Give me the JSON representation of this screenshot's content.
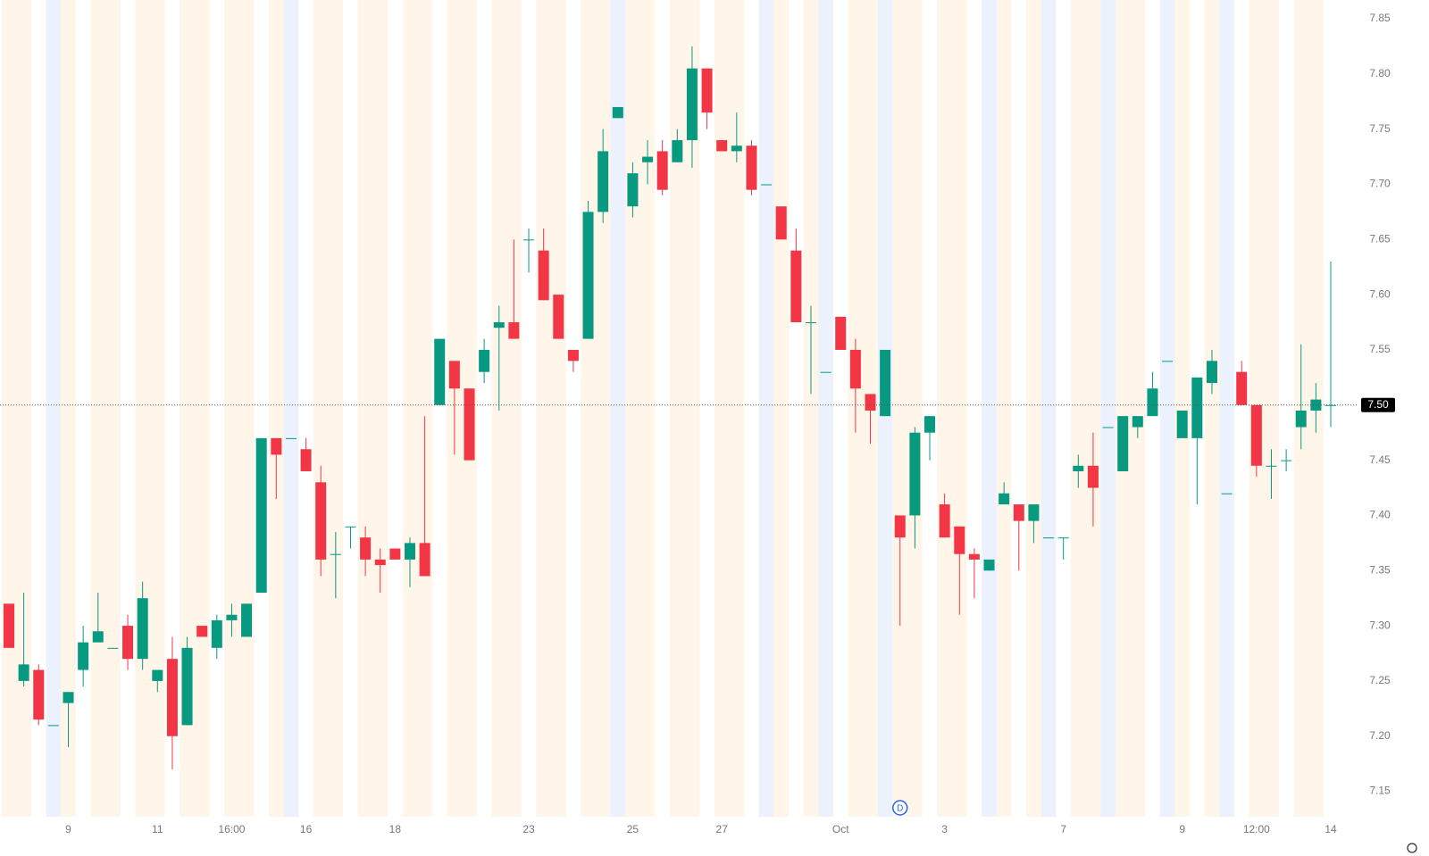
{
  "chart_data": {
    "type": "candlestick",
    "categories": [
      null,
      null,
      null,
      null,
      "9",
      null,
      null,
      null,
      null,
      null,
      "11",
      null,
      null,
      null,
      null,
      "16:00",
      null,
      null,
      null,
      null,
      "16",
      null,
      null,
      null,
      null,
      null,
      "18",
      null,
      null,
      null,
      null,
      null,
      null,
      null,
      null,
      "23",
      null,
      null,
      null,
      null,
      null,
      null,
      "25",
      null,
      null,
      null,
      null,
      null,
      "27",
      null,
      null,
      null,
      null,
      null,
      null,
      null,
      "Oct",
      null,
      null,
      null,
      null,
      null,
      null,
      "3",
      null,
      null,
      null,
      null,
      null,
      null,
      null,
      "7",
      null,
      null,
      null,
      null,
      null,
      null,
      null,
      "9",
      null,
      null,
      null,
      null,
      "12:00",
      null,
      null,
      null,
      null,
      "14"
    ],
    "series": [
      {
        "up_color": "#089981",
        "down_color": "#f23645",
        "open": [
          7.32,
          7.25,
          7.26,
          7.21,
          7.23,
          7.26,
          7.285,
          7.28,
          7.3,
          7.27,
          7.25,
          7.27,
          7.21,
          7.3,
          7.28,
          7.305,
          7.29,
          7.33,
          7.47,
          7.47,
          7.46,
          7.43,
          7.365,
          7.39,
          7.38,
          7.36,
          7.37,
          7.36,
          7.375,
          7.5,
          7.54,
          7.515,
          7.53,
          7.57,
          7.575,
          7.65,
          7.64,
          7.6,
          7.55,
          7.56,
          7.675,
          7.76,
          7.68,
          7.72,
          7.73,
          7.72,
          7.74,
          7.805,
          7.74,
          7.73,
          7.735,
          7.7,
          7.68,
          7.64,
          7.575,
          7.53,
          7.58,
          7.55,
          7.51,
          7.49,
          7.4,
          7.4,
          7.475,
          7.41,
          7.39,
          7.365,
          7.35,
          7.41,
          7.41,
          7.395,
          7.38,
          7.38,
          7.44,
          7.445,
          7.48,
          7.44,
          7.48,
          7.49,
          7.54,
          7.47,
          7.47,
          7.52,
          7.42,
          7.53,
          7.5,
          7.445,
          7.45,
          7.48,
          7.495,
          7.5
        ],
        "high": [
          7.32,
          7.33,
          7.265,
          7.21,
          7.24,
          7.3,
          7.33,
          7.28,
          7.31,
          7.34,
          7.26,
          7.29,
          7.29,
          7.3,
          7.31,
          7.32,
          7.32,
          7.47,
          7.47,
          7.47,
          7.47,
          7.445,
          7.385,
          7.39,
          7.39,
          7.37,
          7.37,
          7.38,
          7.49,
          7.56,
          7.54,
          7.515,
          7.56,
          7.59,
          7.65,
          7.66,
          7.66,
          7.6,
          7.55,
          7.685,
          7.75,
          7.77,
          7.72,
          7.74,
          7.74,
          7.75,
          7.825,
          7.805,
          7.74,
          7.765,
          7.74,
          7.7,
          7.68,
          7.66,
          7.59,
          7.53,
          7.58,
          7.56,
          7.51,
          7.55,
          7.4,
          7.48,
          7.49,
          7.42,
          7.39,
          7.37,
          7.36,
          7.43,
          7.41,
          7.41,
          7.38,
          7.38,
          7.455,
          7.475,
          7.48,
          7.49,
          7.49,
          7.53,
          7.54,
          7.495,
          7.525,
          7.55,
          7.42,
          7.54,
          7.5,
          7.46,
          7.46,
          7.555,
          7.52,
          7.63
        ],
        "low": [
          7.28,
          7.245,
          7.21,
          7.21,
          7.19,
          7.245,
          7.285,
          7.28,
          7.26,
          7.26,
          7.24,
          7.17,
          7.21,
          7.29,
          7.27,
          7.29,
          7.29,
          7.33,
          7.415,
          7.47,
          7.44,
          7.345,
          7.325,
          7.37,
          7.345,
          7.33,
          7.36,
          7.335,
          7.345,
          7.5,
          7.455,
          7.45,
          7.52,
          7.495,
          7.56,
          7.62,
          7.595,
          7.56,
          7.53,
          7.56,
          7.665,
          7.76,
          7.67,
          7.7,
          7.69,
          7.72,
          7.715,
          7.75,
          7.73,
          7.72,
          7.69,
          7.7,
          7.65,
          7.575,
          7.51,
          7.53,
          7.55,
          7.475,
          7.465,
          7.49,
          7.3,
          7.37,
          7.45,
          7.38,
          7.31,
          7.325,
          7.35,
          7.41,
          7.35,
          7.375,
          7.38,
          7.36,
          7.425,
          7.39,
          7.48,
          7.44,
          7.47,
          7.49,
          7.54,
          7.47,
          7.41,
          7.51,
          7.42,
          7.5,
          7.435,
          7.415,
          7.44,
          7.46,
          7.475,
          7.48
        ],
        "close": [
          7.28,
          7.265,
          7.215,
          7.21,
          7.24,
          7.285,
          7.295,
          7.28,
          7.27,
          7.325,
          7.26,
          7.2,
          7.28,
          7.29,
          7.305,
          7.31,
          7.32,
          7.47,
          7.455,
          7.47,
          7.44,
          7.36,
          7.365,
          7.39,
          7.36,
          7.355,
          7.36,
          7.375,
          7.345,
          7.56,
          7.515,
          7.45,
          7.55,
          7.575,
          7.56,
          7.65,
          7.595,
          7.56,
          7.54,
          7.675,
          7.73,
          7.77,
          7.71,
          7.725,
          7.695,
          7.74,
          7.805,
          7.765,
          7.73,
          7.735,
          7.695,
          7.7,
          7.65,
          7.575,
          7.575,
          7.53,
          7.55,
          7.515,
          7.495,
          7.55,
          7.38,
          7.475,
          7.49,
          7.38,
          7.365,
          7.36,
          7.36,
          7.42,
          7.395,
          7.41,
          7.38,
          7.38,
          7.445,
          7.425,
          7.48,
          7.49,
          7.49,
          7.515,
          7.54,
          7.495,
          7.525,
          7.54,
          7.42,
          7.5,
          7.445,
          7.445,
          7.45,
          7.495,
          7.505,
          7.5
        ]
      }
    ],
    "ylim": [
      7.127,
      7.867
    ],
    "yticks": [
      {
        "value": 7.15,
        "label": "7.15"
      },
      {
        "value": 7.2,
        "label": "7.20"
      },
      {
        "value": 7.25,
        "label": "7.25"
      },
      {
        "value": 7.3,
        "label": "7.30"
      },
      {
        "value": 7.35,
        "label": "7.35"
      },
      {
        "value": 7.4,
        "label": "7.40"
      },
      {
        "value": 7.45,
        "label": "7.45"
      },
      {
        "value": 7.5,
        "label": "7.50"
      },
      {
        "value": 7.55,
        "label": "7.55"
      },
      {
        "value": 7.6,
        "label": "7.60"
      },
      {
        "value": 7.65,
        "label": "7.65"
      },
      {
        "value": 7.7,
        "label": "7.70"
      },
      {
        "value": 7.75,
        "label": "7.75"
      },
      {
        "value": 7.8,
        "label": "7.80"
      },
      {
        "value": 7.85,
        "label": "7.85"
      }
    ],
    "last_price": {
      "value": 7.5,
      "label": "7.50"
    },
    "annotation": {
      "index": 60,
      "text": "D"
    },
    "grid": false
  }
}
